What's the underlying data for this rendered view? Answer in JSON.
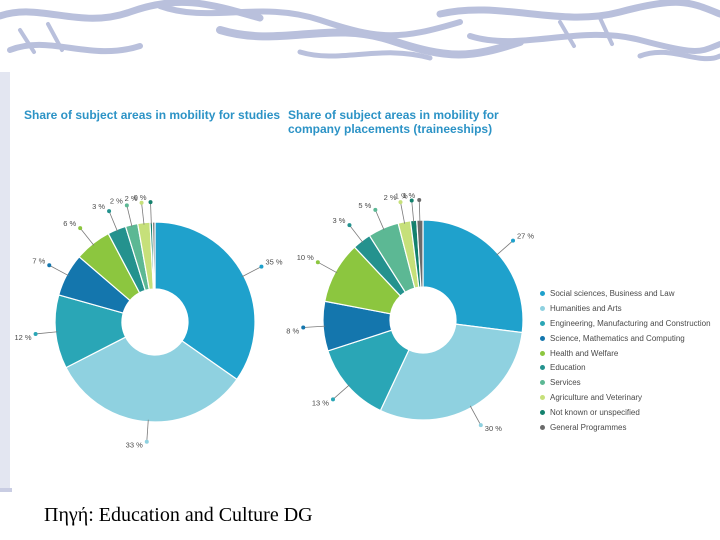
{
  "source_caption": "Πηγή: Education and Culture DG",
  "palette": {
    "banner_stroke": "#b9c0dc",
    "leader": "#7a7a7a",
    "title": "#2c93c6"
  },
  "legend": [
    {
      "label": "Social sciences, Business and Law",
      "color": "#1fa1cc"
    },
    {
      "label": "Humanities and Arts",
      "color": "#8fd1e0"
    },
    {
      "label": "Engineering, Manufacturing and Construction",
      "color": "#2aa6b6"
    },
    {
      "label": "Science, Mathematics and Computing",
      "color": "#1476ad"
    },
    {
      "label": "Health and Welfare",
      "color": "#8cc63f"
    },
    {
      "label": "Education",
      "color": "#24928e"
    },
    {
      "label": "Services",
      "color": "#5cb894"
    },
    {
      "label": "Agriculture and Veterinary",
      "color": "#c6e07a"
    },
    {
      "label": "Not known or unspecified",
      "color": "#13816d"
    },
    {
      "label": "General Programmes",
      "color": "#6b6b6b"
    }
  ],
  "chart_data": [
    {
      "type": "pie",
      "title": "Share of subject areas in mobility for studies",
      "categories": [
        "Social sciences, Business and Law",
        "Humanities and Arts",
        "Engineering, Manufacturing and Construction",
        "Science, Mathematics and Computing",
        "Health and Welfare",
        "Education",
        "Services",
        "Agriculture and Veterinary",
        "Not known or unspecified",
        "General Programmes"
      ],
      "values": [
        35,
        33,
        12,
        7,
        6,
        3,
        2,
        2,
        0.4,
        0.4
      ],
      "labels": [
        "35 %",
        "33 %",
        "12 %",
        "7 %",
        "6 %",
        "3 %",
        "2 %",
        "2 %",
        "0 %",
        ""
      ],
      "hole": 0.33
    },
    {
      "type": "pie",
      "title": "Share of subject areas in mobility for company placements (traineeships)",
      "categories": [
        "Social sciences, Business and Law",
        "Humanities and Arts",
        "Engineering, Manufacturing and Construction",
        "Science, Mathematics and Computing",
        "Health and Welfare",
        "Education",
        "Services",
        "Agriculture and Veterinary",
        "Not known or unspecified",
        "General Programmes"
      ],
      "values": [
        27,
        30,
        13,
        8,
        10,
        3,
        5,
        2,
        1,
        1
      ],
      "labels": [
        "27 %",
        "30 %",
        "13 %",
        "8 %",
        "10 %",
        "3 %",
        "5 %",
        "2 %",
        "1 %",
        "1 %"
      ],
      "hole": 0.33
    }
  ]
}
